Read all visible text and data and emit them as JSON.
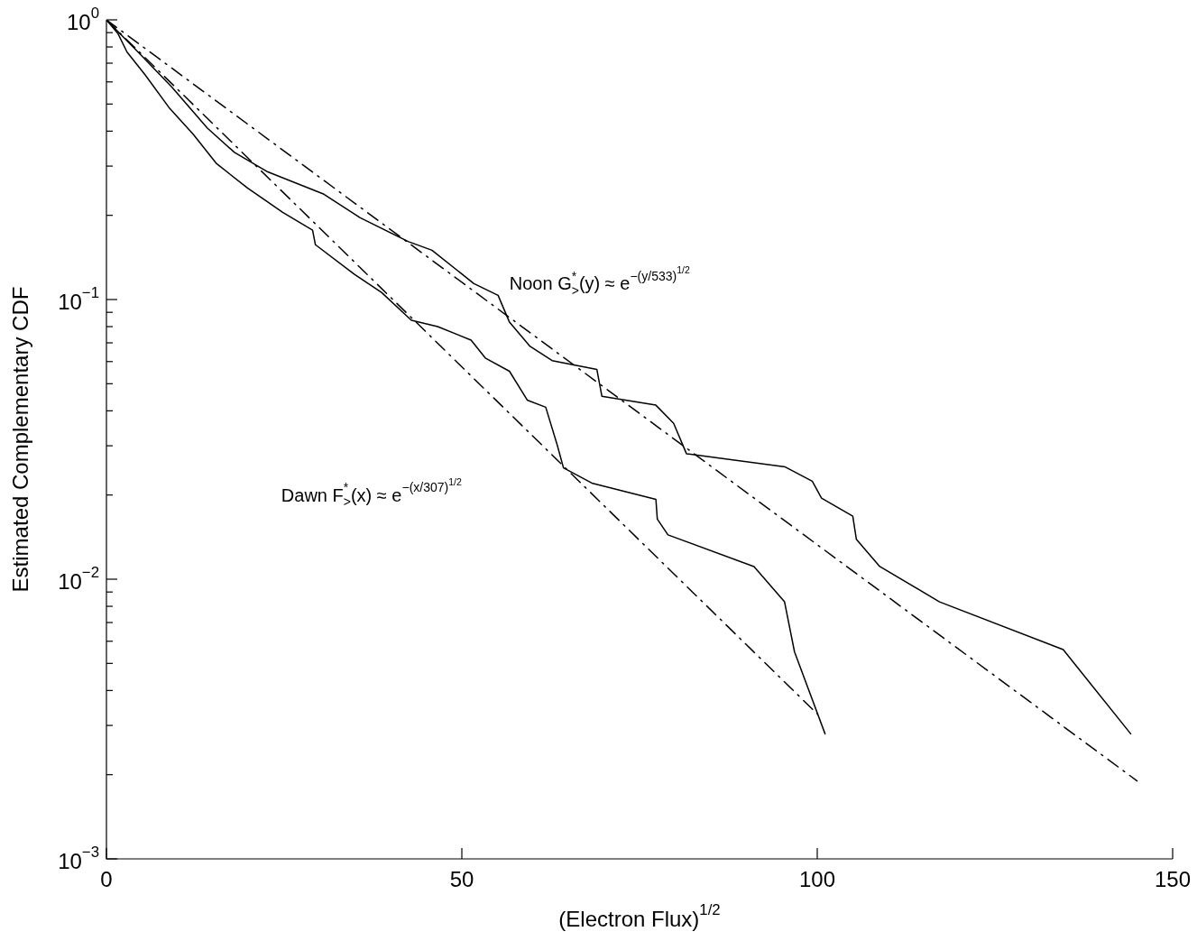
{
  "chart_data": {
    "type": "line",
    "xlabel": "(Electron Flux)$^{1/2}$",
    "ylabel": "Estimated Complementary CDF",
    "log": "y",
    "grid": false,
    "legend": false,
    "marker": "none",
    "xlim": [
      0,
      150
    ],
    "xticks": [
      0,
      50,
      100,
      150
    ],
    "ylim": [
      0.001,
      1
    ],
    "yticks": [
      {
        "value": 0.001,
        "label": "10$^{−3}$"
      },
      {
        "value": 0.002,
        "label": null
      },
      {
        "value": 0.003,
        "label": null
      },
      {
        "value": 0.004,
        "label": null
      },
      {
        "value": 0.005,
        "label": null
      },
      {
        "value": 0.006,
        "label": null
      },
      {
        "value": 0.007,
        "label": null
      },
      {
        "value": 0.008,
        "label": null
      },
      {
        "value": 0.009,
        "label": null
      },
      {
        "value": 0.01,
        "label": "10$^{−2}$"
      },
      {
        "value": 0.02,
        "label": null
      },
      {
        "value": 0.03,
        "label": null
      },
      {
        "value": 0.04,
        "label": null
      },
      {
        "value": 0.05,
        "label": null
      },
      {
        "value": 0.06,
        "label": null
      },
      {
        "value": 0.07,
        "label": null
      },
      {
        "value": 0.08,
        "label": null
      },
      {
        "value": 0.09,
        "label": null
      },
      {
        "value": 0.1,
        "label": "10$^{−1}$"
      },
      {
        "value": 0.2,
        "label": null
      },
      {
        "value": 0.3,
        "label": null
      },
      {
        "value": 0.4,
        "label": null
      },
      {
        "value": 0.5,
        "label": null
      },
      {
        "value": 0.6,
        "label": null
      },
      {
        "value": 0.7,
        "label": null
      },
      {
        "value": 0.8,
        "label": null
      },
      {
        "value": 0.9,
        "label": null
      },
      {
        "value": 1,
        "label": "10$^{0}$"
      }
    ],
    "series": [
      {
        "color": "#000000",
        "line_style": "solid",
        "x": [
          0,
          1.6,
          2.9,
          5.4,
          8.8,
          12.2,
          15.5,
          19.8,
          24.8,
          29.0,
          29.4,
          34.9,
          38.7,
          42.9,
          46.6,
          51.3,
          53.3,
          56.7,
          59.2,
          61.8,
          63.4,
          64.3,
          68.4,
          77.3,
          77.5,
          79.0,
          91.1,
          95.4,
          96.8,
          101.1
        ],
        "values": [
          1,
          0.895,
          0.767,
          0.638,
          0.486,
          0.39,
          0.306,
          0.251,
          0.205,
          0.177,
          0.157,
          0.123,
          0.106,
          0.0843,
          0.08,
          0.0716,
          0.0618,
          0.0554,
          0.0437,
          0.0412,
          0.0303,
          0.025,
          0.022,
          0.0193,
          0.0164,
          0.0144,
          0.0111,
          0.0083,
          0.0055,
          0.0028
        ]
      },
      {
        "color": "#000000",
        "line_style": "solid",
        "x": [
          0,
          4.7,
          9.2,
          14.2,
          18.0,
          22.7,
          30.6,
          35.7,
          42.5,
          45.8,
          51.7,
          55.1,
          56.7,
          59.6,
          62.7,
          69.0,
          69.7,
          77.3,
          79.8,
          81.6,
          95.5,
          99.3,
          100.6,
          105.0,
          105.5,
          108.8,
          117.2,
          134.6,
          144.1
        ],
        "values": [
          1,
          0.756,
          0.575,
          0.41,
          0.336,
          0.286,
          0.238,
          0.196,
          0.161,
          0.15,
          0.114,
          0.1035,
          0.083,
          0.068,
          0.0605,
          0.0562,
          0.0451,
          0.0419,
          0.0361,
          0.0281,
          0.0252,
          0.0224,
          0.0195,
          0.0168,
          0.0139,
          0.0111,
          0.0083,
          0.0056,
          0.0028
        ]
      },
      {
        "color": "#000000",
        "line_style": "dashed",
        "x": [
          0,
          100
        ],
        "values": [
          1,
          0.0033
        ]
      },
      {
        "color": "#000000",
        "line_style": "dashed",
        "x": [
          0,
          145
        ],
        "values": [
          1,
          0.0019
        ]
      }
    ],
    "annotations": [
      "Noon G$_{>}$$^{*}$(y) ≈ e$^{−(y/533)}$$^{1/2}$",
      "Dawn F$_{>}$$^{*}$(x) ≈ e$^{−(x/307)}$$^{1/2}$"
    ]
  }
}
